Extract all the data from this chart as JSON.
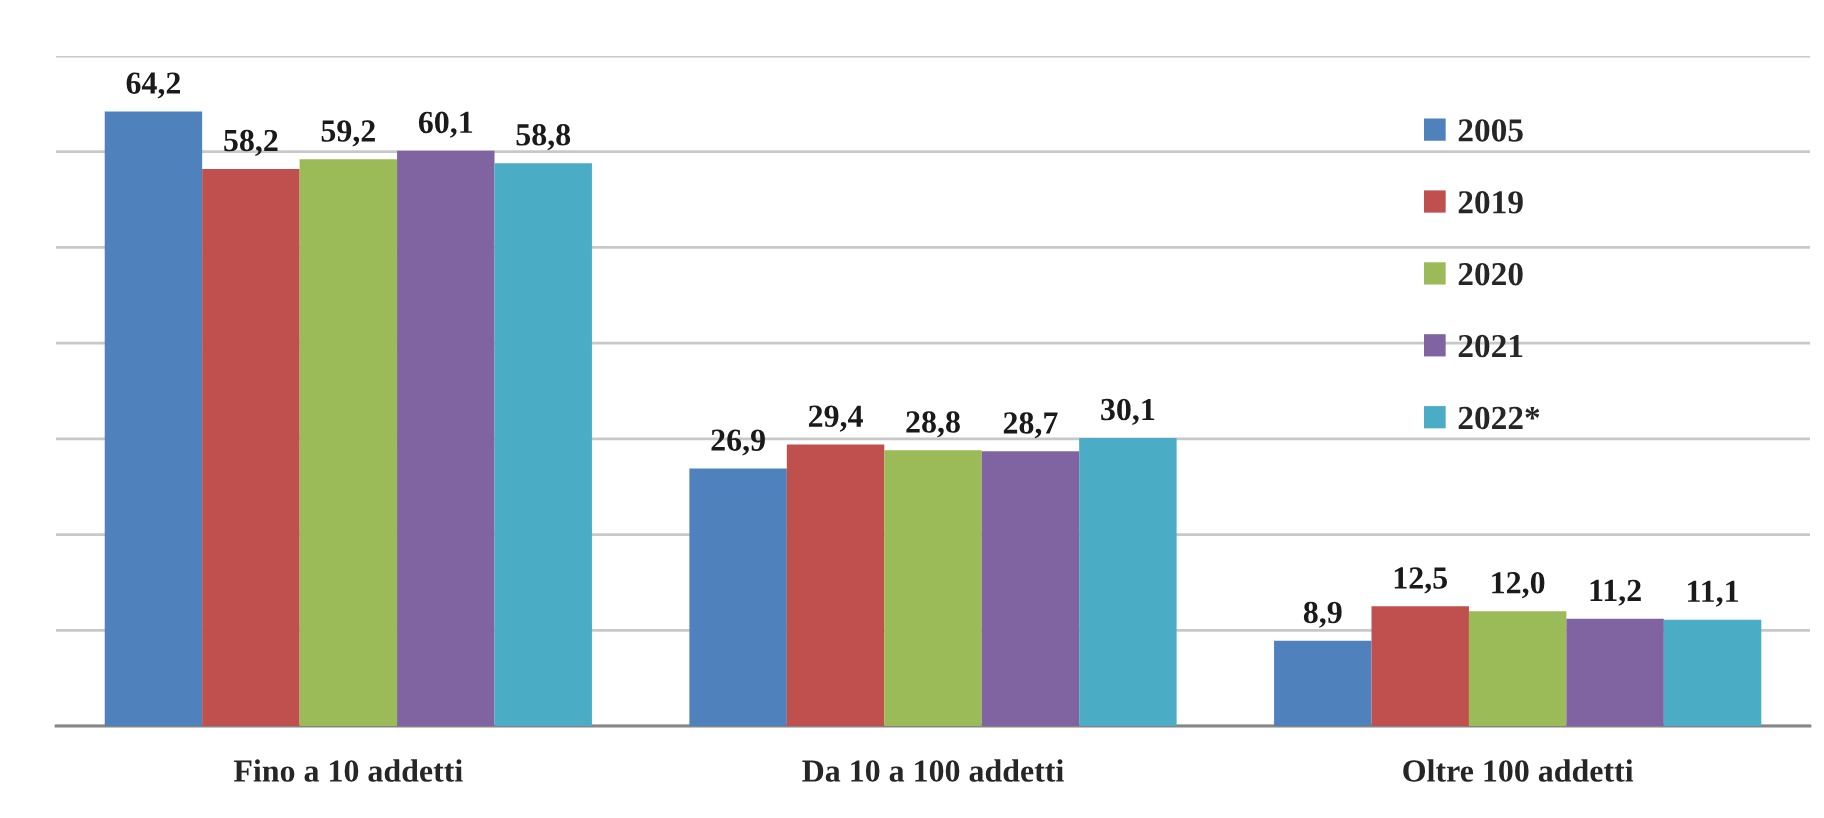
{
  "chart_data": {
    "type": "bar",
    "categories": [
      "Fino a 10 addetti",
      "Da 10 a 100 addetti",
      "Oltre 100 addetti"
    ],
    "series": [
      {
        "name": "2005",
        "color": "#4f81bd",
        "values": [
          64.2,
          26.9,
          8.9
        ],
        "value_labels": [
          "64,2",
          "26,9",
          "8,9"
        ]
      },
      {
        "name": "2019",
        "color": "#c0504d",
        "values": [
          58.2,
          29.4,
          12.5
        ],
        "value_labels": [
          "58,2",
          "29,4",
          "12,5"
        ]
      },
      {
        "name": "2020",
        "color": "#9bbb59",
        "values": [
          59.2,
          28.8,
          12.0
        ],
        "value_labels": [
          "59,2",
          "28,8",
          "12,0"
        ]
      },
      {
        "name": "2021",
        "color": "#8064a2",
        "values": [
          60.1,
          28.7,
          11.2
        ],
        "value_labels": [
          "60,1",
          "28,7",
          "11,2"
        ]
      },
      {
        "name": "2022*",
        "color": "#4bacc6",
        "values": [
          58.8,
          30.1,
          11.1
        ],
        "value_labels": [
          "58,8",
          "30,1",
          "11,1"
        ]
      }
    ],
    "ylim": [
      0,
      70
    ],
    "yticks": [
      {
        "value": 0,
        "label": null
      },
      {
        "value": 10,
        "label": null
      },
      {
        "value": 20,
        "label": null
      },
      {
        "value": 30,
        "label": null
      },
      {
        "value": 40,
        "label": null
      },
      {
        "value": 50,
        "label": null
      },
      {
        "value": 60,
        "label": null
      },
      {
        "value": 70,
        "label": null
      }
    ],
    "tick_labels": "x",
    "grid": "y",
    "legend": "right"
  }
}
